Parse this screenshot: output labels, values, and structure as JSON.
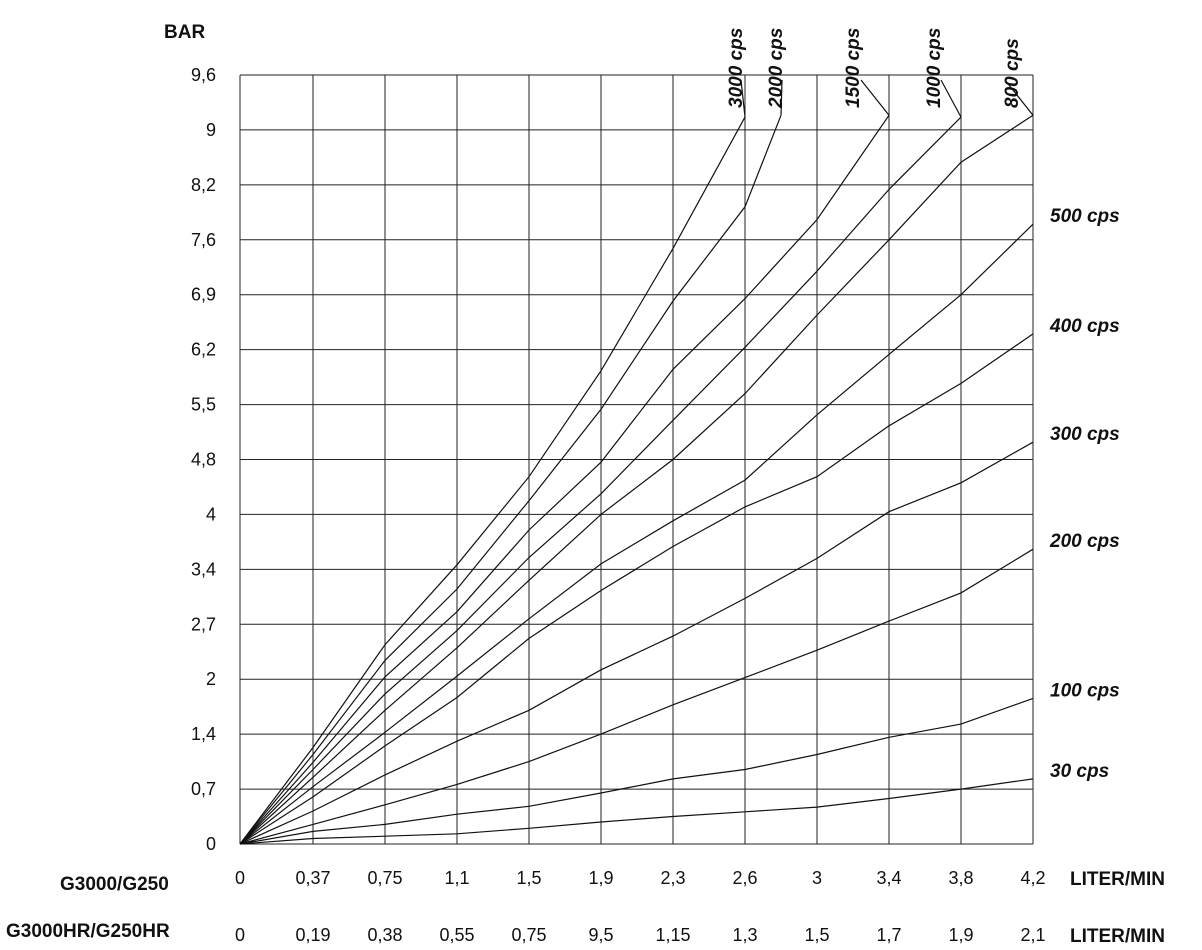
{
  "chart_data": {
    "type": "line",
    "ylabel": "BAR",
    "y_ticks": [
      "0",
      "0,7",
      "1,4",
      "2",
      "2,7",
      "3,4",
      "4",
      "4,8",
      "5,5",
      "6,2",
      "6,9",
      "7,6",
      "8,2",
      "9",
      "9,6"
    ],
    "x_axes": [
      {
        "name": "G3000/G250",
        "unit": "LITER/MIN",
        "ticks": [
          "0",
          "0,37",
          "0,75",
          "1,1",
          "1,5",
          "1,9",
          "2,3",
          "2,6",
          "3",
          "3,4",
          "3,8",
          "4,2"
        ]
      },
      {
        "name": "G3000HR/G250HR",
        "unit": "LITER/MIN",
        "ticks": [
          "0",
          "0,19",
          "0,38",
          "0,55",
          "0,75",
          "9,5",
          "1,15",
          "1,3",
          "1,5",
          "1,7",
          "1,9",
          "2,1"
        ]
      }
    ],
    "grid": true,
    "series": [
      {
        "name": "30 cps",
        "points": [
          [
            0,
            0
          ],
          [
            0.37,
            0.07
          ],
          [
            0.75,
            0.1
          ],
          [
            1.1,
            0.13
          ],
          [
            1.5,
            0.2
          ],
          [
            1.9,
            0.28
          ],
          [
            2.3,
            0.35
          ],
          [
            2.6,
            0.41
          ],
          [
            3,
            0.47
          ],
          [
            3.4,
            0.58
          ],
          [
            3.8,
            0.7
          ],
          [
            4.2,
            0.83
          ]
        ]
      },
      {
        "name": "100 cps",
        "points": [
          [
            0,
            0
          ],
          [
            0.37,
            0.16
          ],
          [
            0.75,
            0.25
          ],
          [
            1.1,
            0.38
          ],
          [
            1.5,
            0.48
          ],
          [
            1.9,
            0.65
          ],
          [
            2.3,
            0.83
          ],
          [
            2.6,
            0.95
          ],
          [
            3,
            1.14
          ],
          [
            3.4,
            1.36
          ],
          [
            3.8,
            1.51
          ],
          [
            4.2,
            1.79
          ]
        ]
      },
      {
        "name": "200 cps",
        "points": [
          [
            0,
            0
          ],
          [
            0.37,
            0.25
          ],
          [
            0.75,
            0.5
          ],
          [
            1.1,
            0.76
          ],
          [
            1.5,
            1.05
          ],
          [
            1.9,
            1.4
          ],
          [
            2.3,
            1.72
          ],
          [
            2.6,
            2.02
          ],
          [
            3,
            2.37
          ],
          [
            3.4,
            2.74
          ],
          [
            3.8,
            3.1
          ],
          [
            4.2,
            3.62
          ]
        ]
      },
      {
        "name": "300 cps",
        "points": [
          [
            0,
            0
          ],
          [
            0.37,
            0.42
          ],
          [
            0.75,
            0.88
          ],
          [
            1.1,
            1.31
          ],
          [
            1.5,
            1.66
          ],
          [
            1.9,
            2.12
          ],
          [
            2.3,
            2.55
          ],
          [
            2.6,
            3.03
          ],
          [
            3,
            3.52
          ],
          [
            3.4,
            4.04
          ],
          [
            3.8,
            4.46
          ],
          [
            4.2,
            5.02
          ]
        ]
      },
      {
        "name": "400 cps",
        "points": [
          [
            0,
            0
          ],
          [
            0.37,
            0.6
          ],
          [
            0.75,
            1.25
          ],
          [
            1.1,
            1.8
          ],
          [
            1.5,
            2.52
          ],
          [
            1.9,
            3.13
          ],
          [
            2.3,
            3.65
          ],
          [
            2.6,
            4.11
          ],
          [
            3,
            4.55
          ],
          [
            3.4,
            5.23
          ],
          [
            3.8,
            5.77
          ],
          [
            4.2,
            6.4
          ]
        ]
      },
      {
        "name": "500 cps",
        "points": [
          [
            0,
            0
          ],
          [
            0.37,
            0.73
          ],
          [
            0.75,
            1.42
          ],
          [
            1.1,
            2.04
          ],
          [
            1.5,
            2.77
          ],
          [
            1.9,
            3.46
          ],
          [
            2.3,
            3.93
          ],
          [
            2.6,
            4.5
          ],
          [
            3,
            5.37
          ],
          [
            3.4,
            6.14
          ],
          [
            3.8,
            6.9
          ],
          [
            4.2,
            7.77
          ]
        ]
      },
      {
        "name": "800 cps",
        "points": [
          [
            0,
            0
          ],
          [
            0.37,
            0.85
          ],
          [
            0.75,
            1.66
          ],
          [
            1.1,
            2.4
          ],
          [
            1.5,
            3.26
          ],
          [
            1.9,
            4.0
          ],
          [
            2.3,
            4.8
          ],
          [
            2.6,
            5.64
          ],
          [
            3,
            6.64
          ],
          [
            3.4,
            7.6
          ],
          [
            3.8,
            8.53
          ],
          [
            4.2,
            9.16
          ]
        ]
      },
      {
        "name": "1000 cps",
        "points": [
          [
            0,
            0
          ],
          [
            0.37,
            0.95
          ],
          [
            0.75,
            1.84
          ],
          [
            1.1,
            2.62
          ],
          [
            1.5,
            3.53
          ],
          [
            1.9,
            4.3
          ],
          [
            2.3,
            5.3
          ],
          [
            2.6,
            6.23
          ],
          [
            3,
            7.2
          ],
          [
            3.4,
            8.15
          ],
          [
            3.8,
            9.14
          ]
        ]
      },
      {
        "name": "1500 cps",
        "points": [
          [
            0,
            0
          ],
          [
            0.37,
            1.04
          ],
          [
            0.75,
            2.03
          ],
          [
            1.1,
            2.86
          ],
          [
            1.5,
            3.83
          ],
          [
            1.9,
            4.76
          ],
          [
            2.3,
            5.95
          ],
          [
            2.6,
            6.85
          ],
          [
            3,
            7.82
          ],
          [
            3.4,
            9.16
          ]
        ]
      },
      {
        "name": "2000 cps",
        "points": [
          [
            0,
            0
          ],
          [
            0.37,
            1.14
          ],
          [
            0.75,
            2.24
          ],
          [
            1.1,
            3.15
          ],
          [
            1.5,
            4.2
          ],
          [
            1.9,
            5.44
          ],
          [
            2.3,
            6.82
          ],
          [
            2.6,
            7.96
          ],
          [
            2.8,
            9.16
          ]
        ]
      },
      {
        "name": "3000 cps",
        "points": [
          [
            0,
            0
          ],
          [
            0.37,
            1.23
          ],
          [
            0.75,
            2.44
          ],
          [
            1.1,
            3.45
          ],
          [
            1.5,
            4.55
          ],
          [
            1.9,
            5.93
          ],
          [
            2.3,
            7.49
          ],
          [
            2.6,
            9.14
          ]
        ]
      }
    ]
  }
}
